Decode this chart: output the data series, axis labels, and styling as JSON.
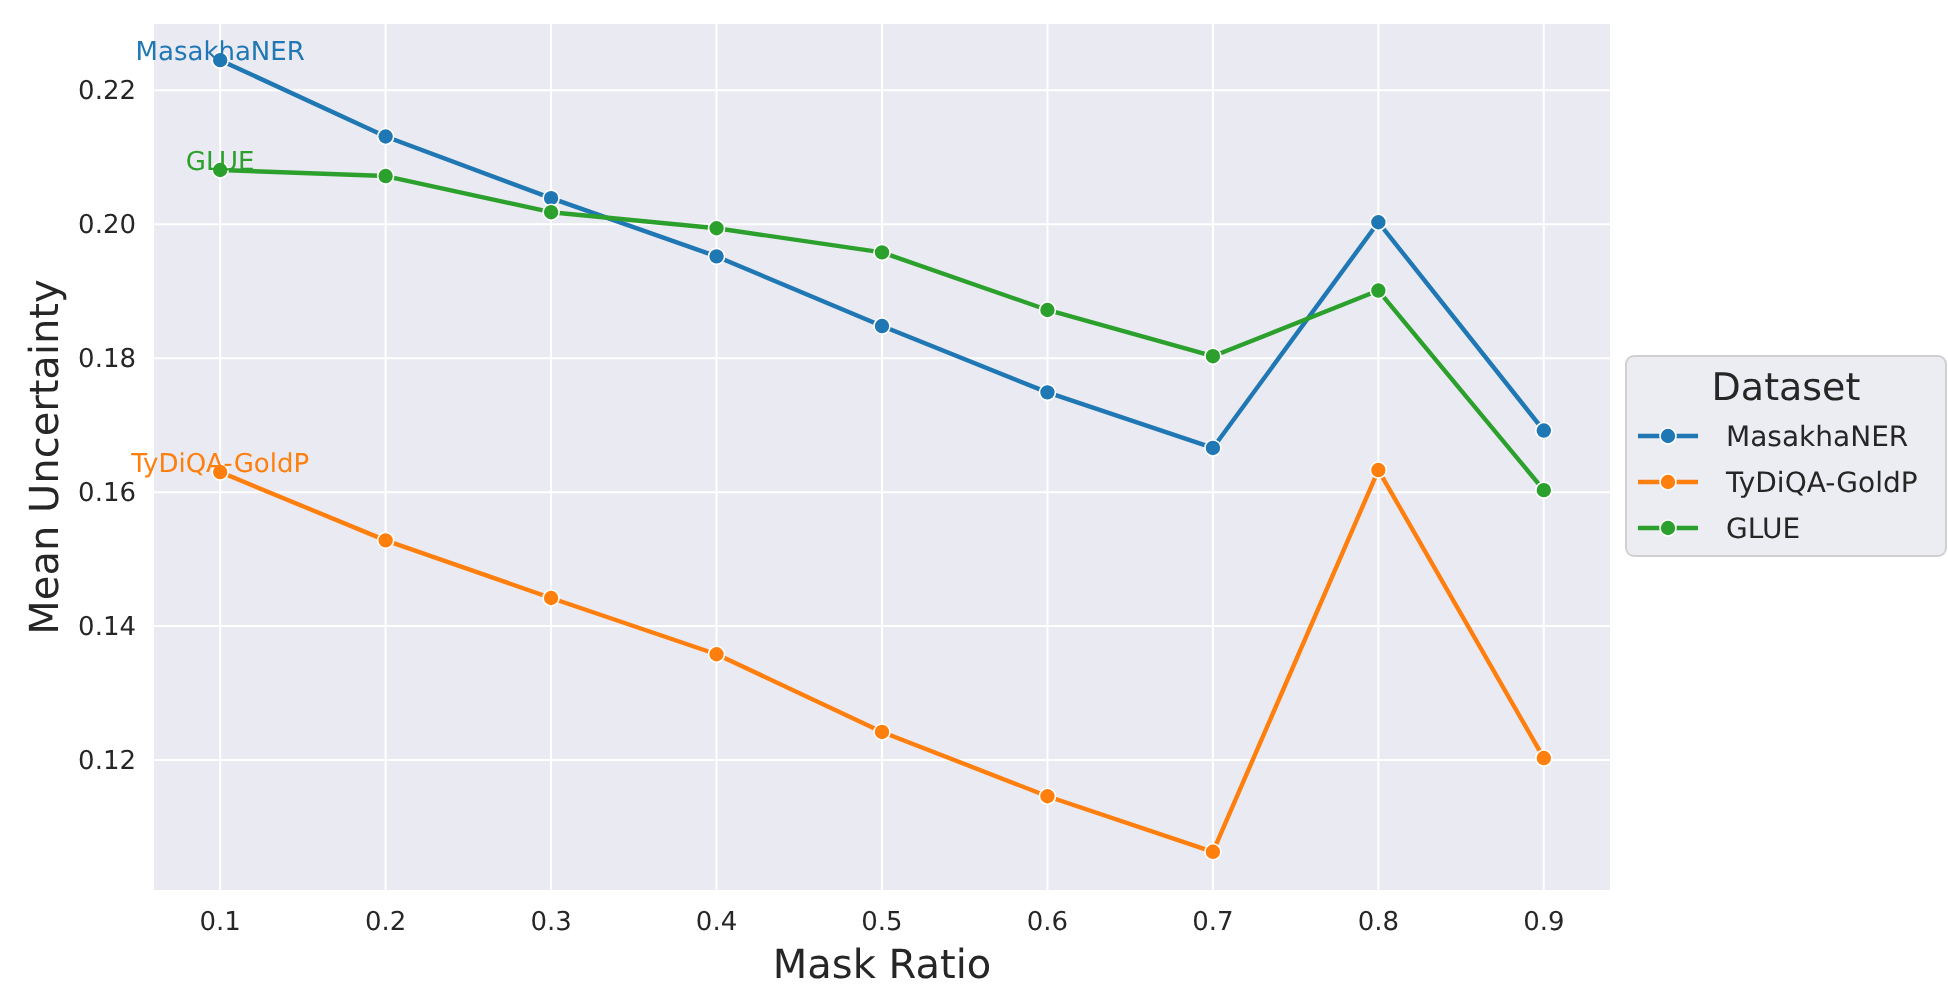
{
  "chart_data": {
    "type": "line",
    "xlabel": "Mask Ratio",
    "ylabel": "Mean Uncertainty",
    "legend_title": "Dataset",
    "x": [
      0.1,
      0.2,
      0.3,
      0.4,
      0.5,
      0.6,
      0.7,
      0.8,
      0.9
    ],
    "series": [
      {
        "name": "MasakhaNER",
        "color": "#1f77b4",
        "values": [
          0.2245,
          0.2131,
          0.2039,
          0.1952,
          0.1848,
          0.1749,
          0.1666,
          0.2003,
          0.1692
        ]
      },
      {
        "name": "TyDiQA-GoldP",
        "color": "#ff7f0e",
        "values": [
          0.163,
          0.1528,
          0.1442,
          0.1358,
          0.1242,
          0.1146,
          0.1063,
          0.1633,
          0.1203
        ]
      },
      {
        "name": "GLUE",
        "color": "#2ca02c",
        "values": [
          0.2081,
          0.2072,
          0.2018,
          0.1994,
          0.1958,
          0.1872,
          0.1803,
          0.1901,
          0.1603
        ]
      }
    ],
    "xlim": [
      0.06,
      0.94
    ],
    "xticks": [
      {
        "value": 0.1,
        "label": "0.1"
      },
      {
        "value": 0.2,
        "label": "0.2"
      },
      {
        "value": 0.3,
        "label": "0.3"
      },
      {
        "value": 0.4,
        "label": "0.4"
      },
      {
        "value": 0.5,
        "label": "0.5"
      },
      {
        "value": 0.6,
        "label": "0.6"
      },
      {
        "value": 0.7,
        "label": "0.7"
      },
      {
        "value": 0.8,
        "label": "0.8"
      },
      {
        "value": 0.9,
        "label": "0.9"
      }
    ],
    "ylim": [
      0.1006,
      0.2299
    ],
    "yticks": [
      {
        "value": 0.12,
        "label": "0.12"
      },
      {
        "value": 0.14,
        "label": "0.14"
      },
      {
        "value": 0.16,
        "label": "0.16"
      },
      {
        "value": 0.18,
        "label": "0.18"
      },
      {
        "value": 0.2,
        "label": "0.20"
      },
      {
        "value": 0.22,
        "label": "0.22"
      }
    ],
    "grid": true,
    "legend": "right",
    "marker": "circle",
    "line_style": "solid"
  }
}
